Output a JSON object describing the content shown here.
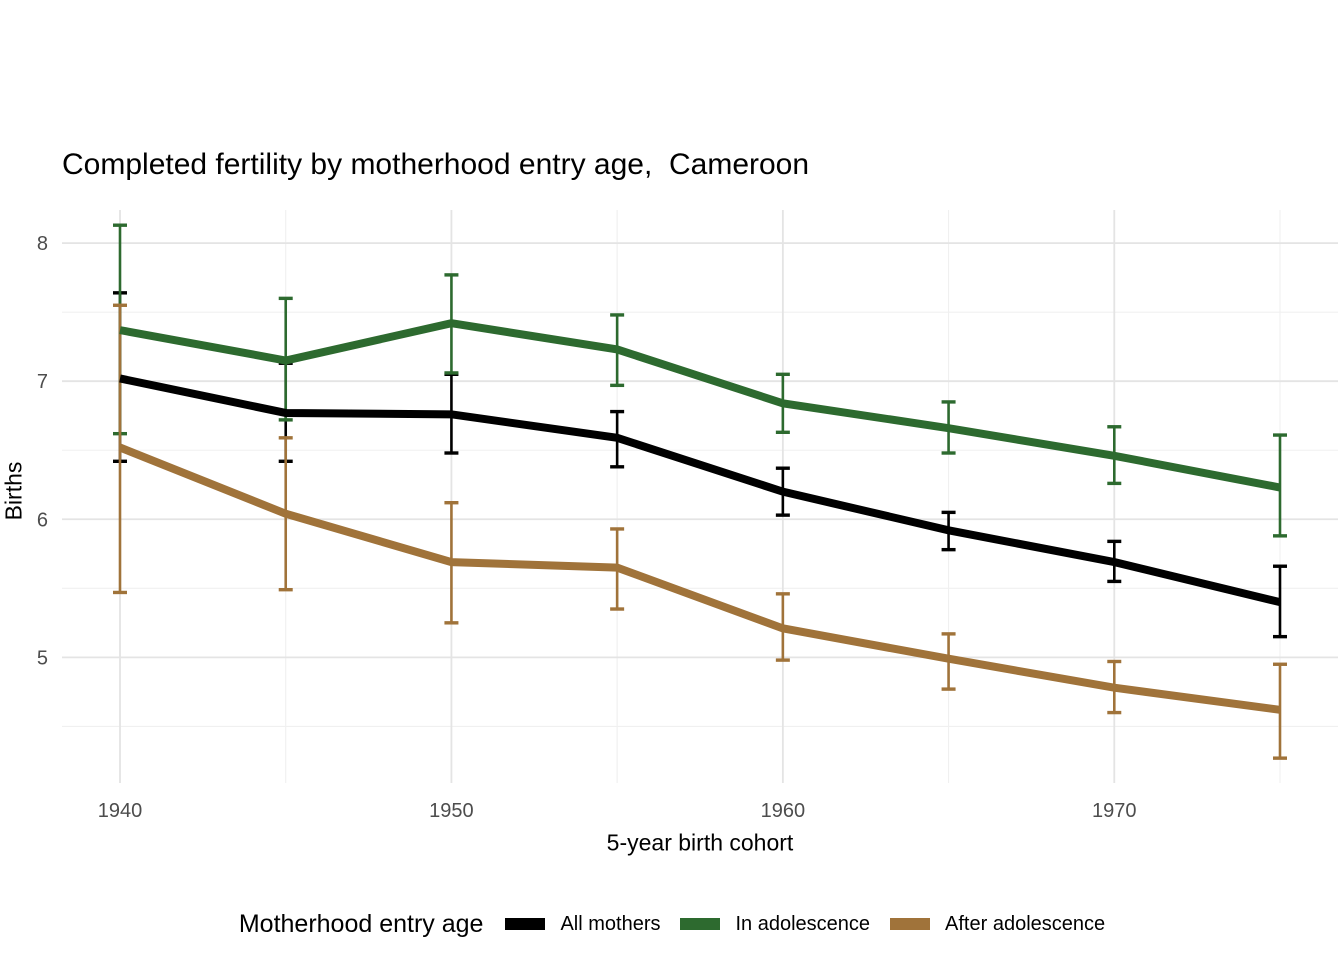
{
  "title": "Completed fertility by motherhood entry age,  Cameroon",
  "axes": {
    "x_label": "5-year birth cohort",
    "y_label": "Births"
  },
  "legend": {
    "title": "Motherhood entry age",
    "entries": [
      {
        "label": "All mothers",
        "color": "#000000"
      },
      {
        "label": "In adolescence",
        "color": "#2d6a2f"
      },
      {
        "label": "After adolescence",
        "color": "#a0733a"
      }
    ],
    "position": "bottom"
  },
  "colors": {
    "background": "#ffffff",
    "grid_major": "#e4e4e4",
    "grid_minor": "#f0f0f0",
    "tick_label": "#4d4d4d"
  },
  "chart_data": {
    "type": "line",
    "title": "Completed fertility by motherhood entry age,  Cameroon",
    "xlabel": "5-year birth cohort",
    "ylabel": "Births",
    "grid": true,
    "legend_position": "bottom",
    "xlim": [
      1938.25,
      1976.75
    ],
    "ylim": [
      4.09,
      8.24
    ],
    "x_ticks": [
      1940,
      1950,
      1960,
      1970
    ],
    "x_minor_ticks": [
      1945,
      1955,
      1965,
      1975
    ],
    "y_ticks": [
      5,
      6,
      7,
      8
    ],
    "y_minor_ticks": [
      4.5,
      5.5,
      6.5,
      7.5
    ],
    "x": [
      1940,
      1945,
      1950,
      1955,
      1960,
      1965,
      1970,
      1975
    ],
    "series": [
      {
        "name": "All mothers",
        "color": "#000000",
        "values": [
          7.02,
          6.77,
          6.76,
          6.59,
          6.2,
          5.92,
          5.69,
          5.4
        ],
        "ci_low": [
          6.42,
          6.42,
          6.48,
          6.38,
          6.03,
          5.78,
          5.55,
          5.15
        ],
        "ci_high": [
          7.64,
          7.13,
          7.05,
          6.78,
          6.37,
          6.05,
          5.84,
          5.66
        ]
      },
      {
        "name": "In adolescence",
        "color": "#2d6a2f",
        "values": [
          7.37,
          7.15,
          7.42,
          7.23,
          6.84,
          6.66,
          6.46,
          6.23
        ],
        "ci_low": [
          6.62,
          6.72,
          7.06,
          6.97,
          6.63,
          6.48,
          6.26,
          5.88
        ],
        "ci_high": [
          8.13,
          7.6,
          7.77,
          7.48,
          7.05,
          6.85,
          6.67,
          6.61
        ]
      },
      {
        "name": "After adolescence",
        "color": "#a0733a",
        "values": [
          6.52,
          6.04,
          5.69,
          5.65,
          5.21,
          4.99,
          4.78,
          4.62
        ],
        "ci_low": [
          5.47,
          5.49,
          5.25,
          5.35,
          4.98,
          4.77,
          4.6,
          4.27
        ],
        "ci_high": [
          7.55,
          6.59,
          6.12,
          5.93,
          5.46,
          5.17,
          4.97,
          4.95
        ]
      }
    ]
  }
}
